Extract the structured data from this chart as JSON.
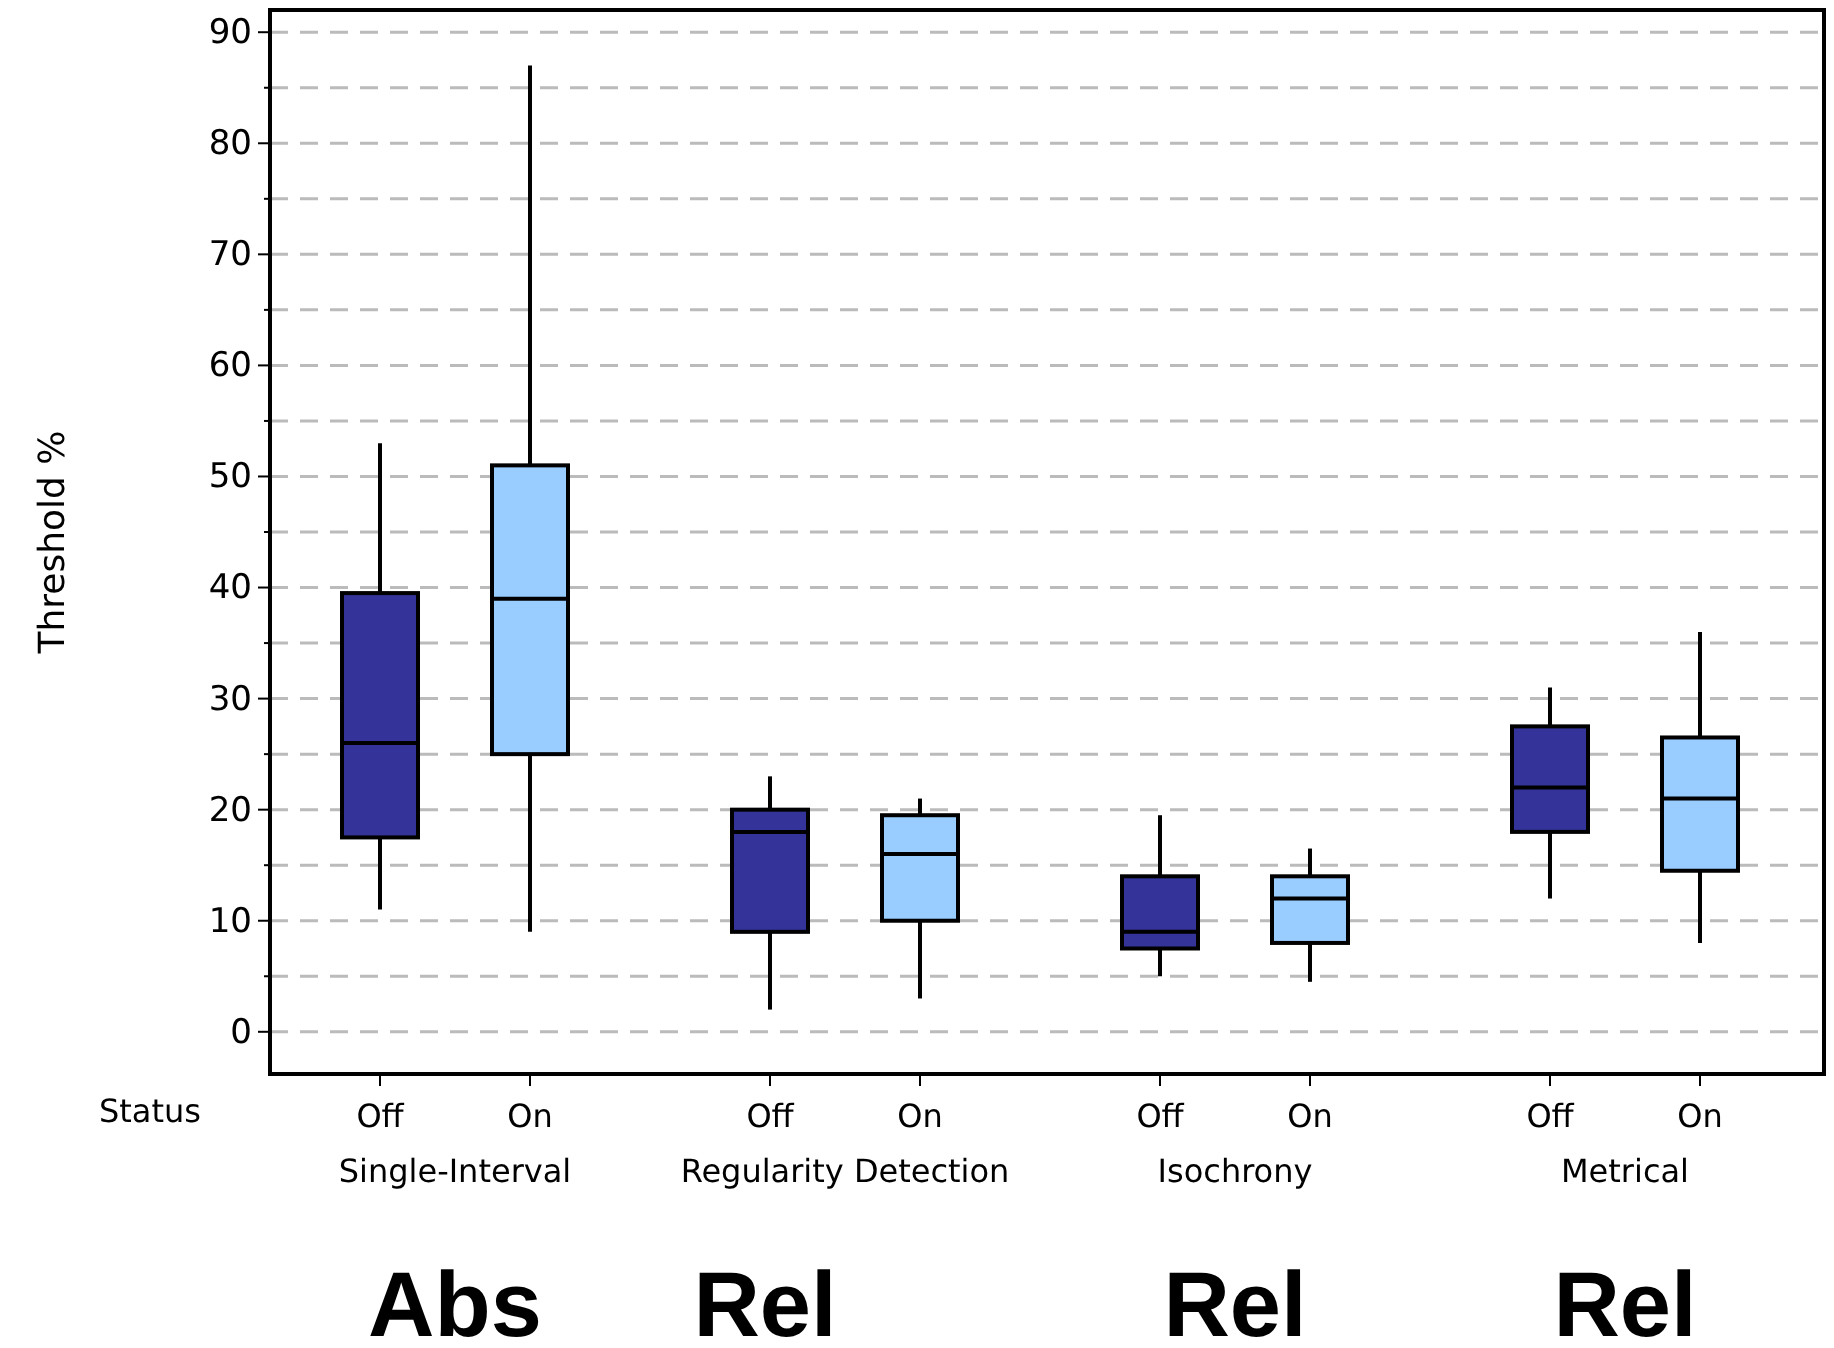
{
  "chart_data": {
    "type": "box",
    "ylabel": "Threshold %",
    "categories": [
      "Off",
      "On",
      "Off",
      "On",
      "Off",
      "On",
      "Off",
      "On"
    ],
    "colors": [
      "#333399",
      "#99ccff",
      "#333399",
      "#99ccff",
      "#333399",
      "#99ccff",
      "#333399",
      "#99ccff"
    ],
    "boxes": [
      {
        "low": 11,
        "q1": 17.5,
        "median": 26,
        "q3": 39.5,
        "high": 53
      },
      {
        "low": 9,
        "q1": 25,
        "median": 39,
        "q3": 51,
        "high": 87
      },
      {
        "low": 2,
        "q1": 9,
        "median": 18,
        "q3": 20,
        "high": 23
      },
      {
        "low": 3,
        "q1": 10,
        "median": 16,
        "q3": 19.5,
        "high": 21
      },
      {
        "low": 5,
        "q1": 7.5,
        "median": 9,
        "q3": 14,
        "high": 19.5
      },
      {
        "low": 4.5,
        "q1": 8,
        "median": 12,
        "q3": 14,
        "high": 16.5
      },
      {
        "low": 12,
        "q1": 18,
        "median": 22,
        "q3": 27.5,
        "high": 31
      },
      {
        "low": 8,
        "q1": 14.5,
        "median": 21,
        "q3": 26.5,
        "high": 36
      }
    ],
    "ylim": [
      -3.8,
      92
    ],
    "yticks": [
      0,
      {
        "value": 5,
        "label": null
      },
      10,
      {
        "value": 15,
        "label": null
      },
      20,
      {
        "value": 25,
        "label": null
      },
      30,
      {
        "value": 35,
        "label": null
      },
      40,
      {
        "value": 45,
        "label": null
      },
      50,
      {
        "value": 55,
        "label": null
      },
      60,
      {
        "value": 65,
        "label": null
      },
      70,
      {
        "value": 75,
        "label": null
      },
      80,
      {
        "value": 85,
        "label": null
      },
      90
    ],
    "grid": "y",
    "annotations": [
      "Status",
      "Single-Interval",
      "Regularity Detection",
      "Isochrony",
      "Metrical",
      "Abs",
      "Rel",
      "Rel",
      "Rel"
    ]
  }
}
